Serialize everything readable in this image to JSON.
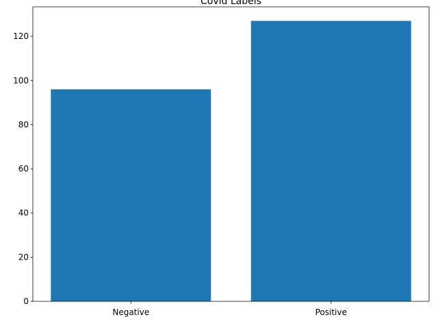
{
  "chart_data": {
    "type": "bar",
    "title": "Covid Labels",
    "xlabel": "",
    "ylabel": "",
    "categories": [
      "Negative",
      "Positive"
    ],
    "values": [
      96,
      127
    ],
    "ylim": [
      0,
      133.35
    ],
    "yticks": [
      0,
      20,
      40,
      60,
      80,
      100,
      120
    ],
    "bar_color": "#1f77b4",
    "grid": false,
    "legend": "none"
  }
}
